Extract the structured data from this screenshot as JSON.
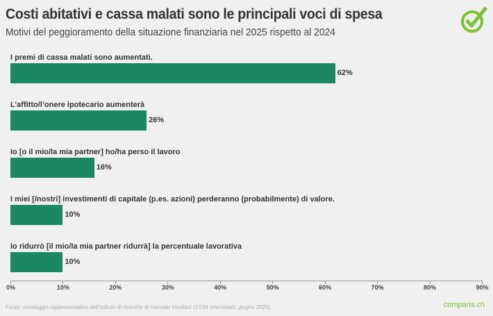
{
  "header": {
    "title": "Costi abitativi e cassa malati sono le principali voci di spesa",
    "subtitle": "Motivi del peggioramento della situazione finanziaria nel 2025 rispetto al 2024",
    "logo_icon": "check-circle-icon"
  },
  "footer": {
    "source": "Fonte: sondaggio rappresentativo dell'istituto di ricerche di mercato Innofact (1'034 intervistati, giugno 2025)",
    "brand": "comparis.ch"
  },
  "colors": {
    "bar": "#1b8862",
    "background": "#f0f0f0",
    "brand_green": "#7ac231",
    "text": "#333333"
  },
  "chart_data": {
    "type": "bar",
    "orientation": "horizontal",
    "title": "Costi abitativi e cassa malati sono le principali voci di spesa",
    "subtitle": "Motivi del peggioramento della situazione finanziaria nel 2025 rispetto al 2024",
    "categories": [
      "I premi di cassa malati sono aumentati.",
      "L’affitto/l’onere ipotecario aumenterà",
      "Io [o il mio/la mia partner] ho/ha perso il lavoro",
      "I miei [/nostri] investimenti di capitale (p.es. azioni) perderanno (probabilmente) di valore.",
      "Io ridurrò [il mio/la mia partner ridurrà] la percentuale lavorativa"
    ],
    "values": [
      62,
      26,
      16,
      10,
      10
    ],
    "value_labels": [
      "62%",
      "26%",
      "16%",
      "10%",
      "10%"
    ],
    "xlabel": "",
    "ylabel": "",
    "xlim": [
      0,
      90
    ],
    "x_ticks": [
      "0%",
      "10%",
      "20%",
      "30%",
      "40%",
      "50%",
      "60%",
      "70%",
      "80%",
      "90%"
    ],
    "grid": false,
    "legend": null
  }
}
